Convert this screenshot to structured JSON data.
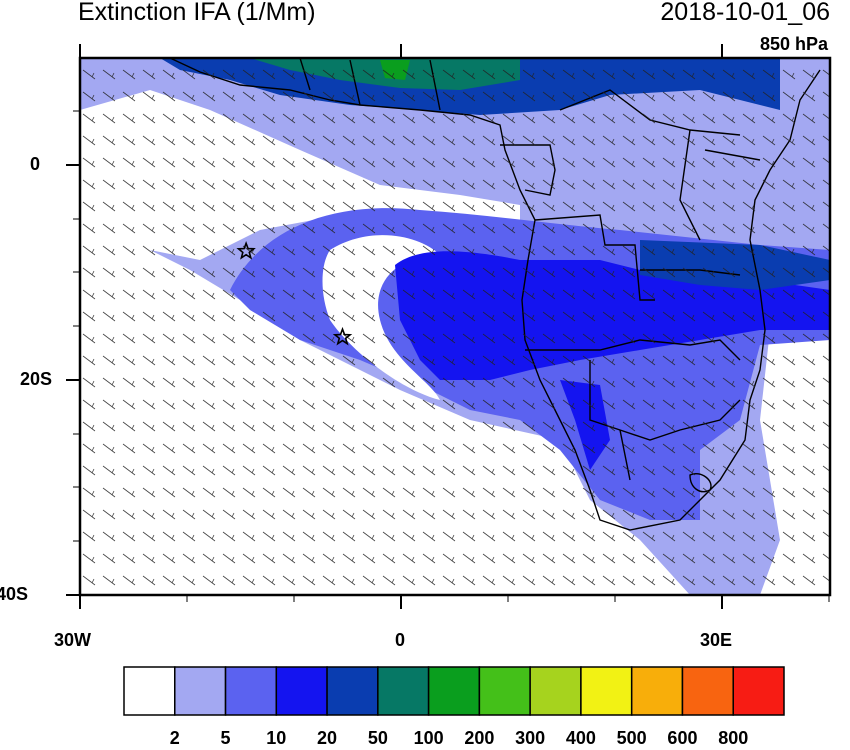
{
  "header": {
    "title": "Extinction IFA (1/Mm)",
    "datetime": "2018-10-01_06",
    "level": "850 hPa"
  },
  "axes": {
    "lat_labels": [
      "0",
      "20S",
      "40S"
    ],
    "lon_labels": [
      "30W",
      "0",
      "30E"
    ]
  },
  "map_extent": {
    "lon_min": -30,
    "lon_max": 40,
    "lat_min": -40,
    "lat_max": 10
  },
  "markers": [
    {
      "type": "star",
      "lon": -14.5,
      "lat": -8
    },
    {
      "type": "star",
      "lon": -5.5,
      "lat": -16
    }
  ],
  "colorbar": {
    "labels": [
      "2",
      "5",
      "10",
      "20",
      "50",
      "100",
      "200",
      "300",
      "400",
      "500",
      "600",
      "800"
    ],
    "colors": [
      "#ffffff",
      "#a3a8f2",
      "#5b62f0",
      "#1414f0",
      "#0a3db0",
      "#067865",
      "#0a9e1e",
      "#44c019",
      "#a6d31e",
      "#f2f214",
      "#f8ae0a",
      "#f86410",
      "#f71c14"
    ]
  },
  "colors": {
    "light_blue": "#a3a8f2",
    "mid_blue": "#5b62f0",
    "blue": "#1414f0",
    "dark_blue": "#0a3db0",
    "teal": "#067865",
    "green": "#0a9e1e"
  }
}
